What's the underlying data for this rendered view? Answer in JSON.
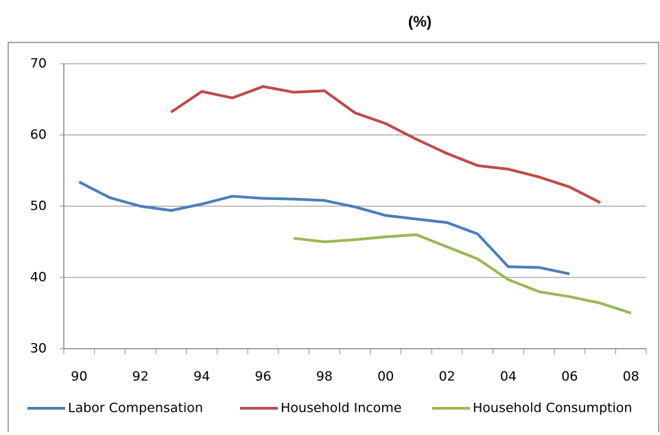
{
  "chart_data": {
    "type": "line",
    "title": "(%)",
    "categories": [
      "90",
      null,
      "92",
      null,
      "94",
      null,
      "96",
      null,
      "98",
      null,
      "00",
      null,
      "02",
      null,
      "04",
      null,
      "06",
      null,
      "08"
    ],
    "series": [
      {
        "name": "Labor Compensation",
        "color": "#4a7ebb",
        "values": [
          53.4,
          51.2,
          50.0,
          49.4,
          50.3,
          51.4,
          51.1,
          51.0,
          50.8,
          49.9,
          48.7,
          48.2,
          47.7,
          46.1,
          41.5,
          41.4,
          40.5,
          null,
          null
        ]
      },
      {
        "name": "Household Income",
        "color": "#be4b48",
        "values": [
          null,
          null,
          null,
          63.2,
          66.1,
          65.2,
          66.8,
          66.0,
          66.2,
          63.1,
          61.6,
          59.4,
          57.4,
          55.7,
          55.2,
          54.1,
          52.7,
          50.5,
          null
        ]
      },
      {
        "name": "Household Consumption",
        "color": "#98b954",
        "values": [
          null,
          null,
          null,
          null,
          null,
          null,
          null,
          45.5,
          45.0,
          45.3,
          45.7,
          46.0,
          44.3,
          42.6,
          39.7,
          38.0,
          37.3,
          36.4,
          35.0
        ]
      }
    ],
    "ylim": [
      30,
      70
    ],
    "yticks": [
      30,
      40,
      50,
      60,
      70
    ],
    "grid": true,
    "legend": "bottom"
  }
}
